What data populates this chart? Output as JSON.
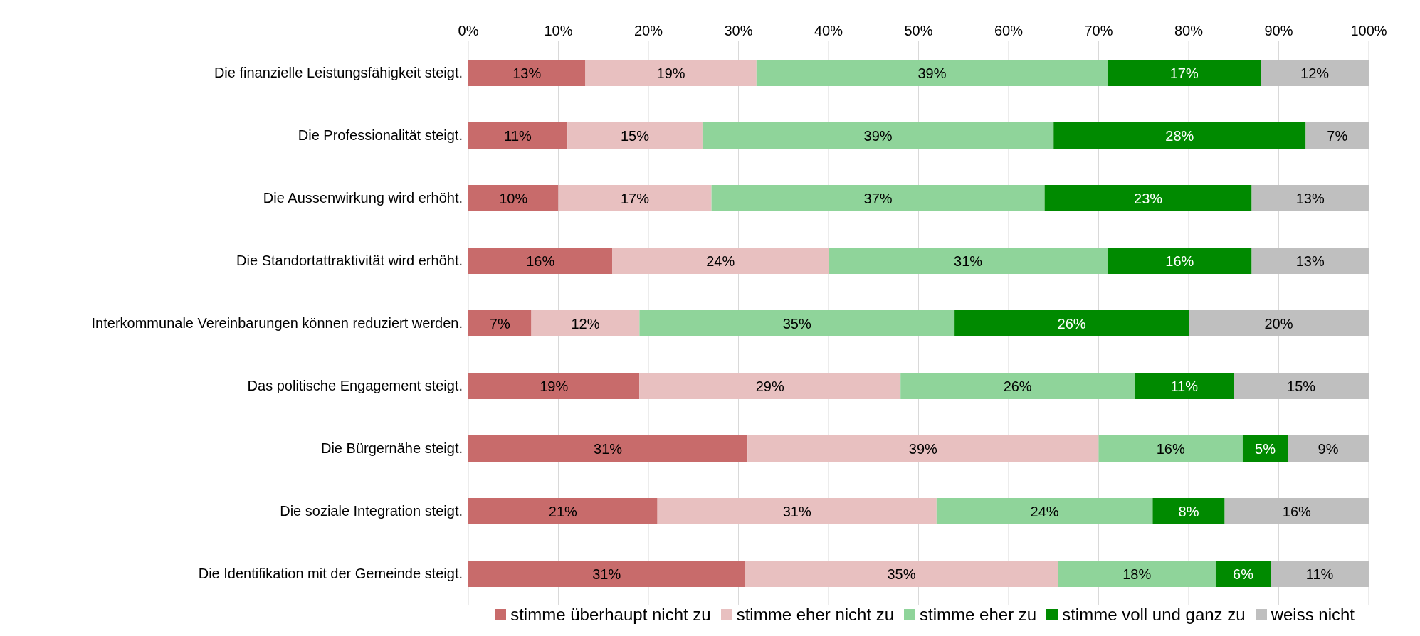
{
  "chart_data": {
    "type": "bar",
    "orientation": "horizontal",
    "stacked": true,
    "grid": "x",
    "legend": "bottom",
    "categories": [
      "Die finanzielle Leistungsfähigkeit steigt.",
      "Die Professionalität steigt.",
      "Die Aussenwirkung wird erhöht.",
      "Die Standortattraktivität wird erhöht.",
      "Interkommunale Vereinbarungen können reduziert werden.",
      "Das politische Engagement steigt.",
      "Die Bürgernähe steigt.",
      "Die soziale Integration steigt.",
      "Die Identifikation mit der Gemeinde steigt."
    ],
    "xlim": [
      0,
      100
    ],
    "xticks": [
      {
        "value": 0,
        "label": "0%"
      },
      {
        "value": 10,
        "label": "10%"
      },
      {
        "value": 20,
        "label": "20%"
      },
      {
        "value": 30,
        "label": "30%"
      },
      {
        "value": 40,
        "label": "40%"
      },
      {
        "value": 50,
        "label": "50%"
      },
      {
        "value": 60,
        "label": "60%"
      },
      {
        "value": 70,
        "label": "70%"
      },
      {
        "value": 80,
        "label": "80%"
      },
      {
        "value": 90,
        "label": "90%"
      },
      {
        "value": 100,
        "label": "100%"
      }
    ],
    "series": [
      {
        "name": "stimme überhaupt nicht zu",
        "color": "#c86b6b",
        "values": [
          13,
          11,
          10,
          16,
          7,
          19,
          31,
          21,
          30.7
        ],
        "value_labels": [
          "13%",
          "11%",
          "10%",
          "16%",
          "7%",
          "19%",
          "31%",
          "21%",
          "31%"
        ]
      },
      {
        "name": "stimme eher nicht zu",
        "color": "#e8c0c0",
        "values": [
          19,
          15,
          17,
          24,
          12,
          29,
          39,
          31,
          34.8
        ],
        "value_labels": [
          "19%",
          "15%",
          "17%",
          "24%",
          "12%",
          "29%",
          "39%",
          "31%",
          "35%"
        ]
      },
      {
        "name": "stimme eher zu",
        "color": "#8fd49a",
        "values": [
          39,
          39,
          37,
          31,
          35,
          26,
          16,
          24,
          17.5
        ],
        "value_labels": [
          "39%",
          "39%",
          "37%",
          "31%",
          "35%",
          "26%",
          "16%",
          "24%",
          "18%"
        ]
      },
      {
        "name": "stimme voll und ganz zu",
        "color": "#008a00",
        "values": [
          17,
          28,
          23,
          16,
          26,
          11,
          5,
          8,
          6.1
        ],
        "value_labels": [
          "17%",
          "28%",
          "23%",
          "16%",
          "26%",
          "11%",
          "5%",
          "8%",
          "6%"
        ]
      },
      {
        "name": "weiss nicht",
        "color": "#bfbfbf",
        "values": [
          12,
          7,
          13,
          13,
          20,
          15,
          9,
          16,
          10.9
        ],
        "value_labels": [
          "12%",
          "7%",
          "13%",
          "13%",
          "20%",
          "15%",
          "9%",
          "16%",
          "11%"
        ]
      }
    ]
  }
}
